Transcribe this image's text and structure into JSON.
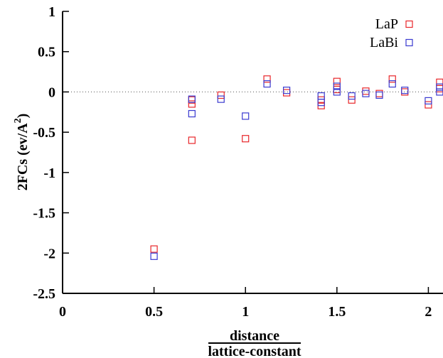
{
  "chart_data": {
    "type": "scatter",
    "title": "",
    "xlabel_numerator": "distance",
    "xlabel_denominator": "lattice-constant",
    "ylabel": "2FCs (ev/A",
    "ylabel_superscript": "2",
    "ylabel_close": ")",
    "xlim": [
      0,
      2.08
    ],
    "ylim": [
      -2.5,
      1
    ],
    "xticks": [
      0,
      0.5,
      1,
      1.5,
      2
    ],
    "xtick_labels": [
      "0",
      "0.5",
      "1",
      "1.5",
      "2"
    ],
    "yticks": [
      1,
      0.5,
      0,
      -0.5,
      -1,
      -1.5,
      -2,
      -2.5
    ],
    "ytick_labels": [
      "1",
      "0.5",
      "0",
      "-0.5",
      "-1",
      "-1.5",
      "-2",
      "-2.5"
    ],
    "zero_line": true,
    "grid": false,
    "legend_position": "top-right",
    "series": [
      {
        "name": "LaP",
        "color": "#e8262a",
        "marker": "open-square",
        "points": [
          {
            "x": 0.5,
            "y": -1.95
          },
          {
            "x": 0.707,
            "y": -0.1
          },
          {
            "x": 0.707,
            "y": -0.15
          },
          {
            "x": 0.707,
            "y": -0.6
          },
          {
            "x": 0.866,
            "y": -0.04
          },
          {
            "x": 1.0,
            "y": -0.58
          },
          {
            "x": 1.118,
            "y": 0.16
          },
          {
            "x": 1.225,
            "y": -0.01
          },
          {
            "x": 1.414,
            "y": -0.1
          },
          {
            "x": 1.414,
            "y": -0.17
          },
          {
            "x": 1.5,
            "y": 0.13
          },
          {
            "x": 1.5,
            "y": 0.03
          },
          {
            "x": 1.581,
            "y": -0.1
          },
          {
            "x": 1.658,
            "y": 0.01
          },
          {
            "x": 1.732,
            "y": -0.02
          },
          {
            "x": 1.803,
            "y": 0.16
          },
          {
            "x": 1.871,
            "y": 0.0
          },
          {
            "x": 2.0,
            "y": -0.16
          },
          {
            "x": 2.062,
            "y": 0.12
          },
          {
            "x": 2.062,
            "y": 0.04
          }
        ]
      },
      {
        "name": "LaBi",
        "color": "#3a3ad0",
        "marker": "open-square",
        "points": [
          {
            "x": 0.5,
            "y": -2.04
          },
          {
            "x": 0.707,
            "y": -0.09
          },
          {
            "x": 0.707,
            "y": -0.27
          },
          {
            "x": 0.866,
            "y": -0.09
          },
          {
            "x": 1.0,
            "y": -0.3
          },
          {
            "x": 1.118,
            "y": 0.1
          },
          {
            "x": 1.225,
            "y": 0.02
          },
          {
            "x": 1.414,
            "y": -0.05
          },
          {
            "x": 1.414,
            "y": -0.13
          },
          {
            "x": 1.5,
            "y": 0.07
          },
          {
            "x": 1.5,
            "y": 0.0
          },
          {
            "x": 1.581,
            "y": -0.05
          },
          {
            "x": 1.658,
            "y": -0.02
          },
          {
            "x": 1.732,
            "y": -0.04
          },
          {
            "x": 1.803,
            "y": 0.1
          },
          {
            "x": 1.871,
            "y": 0.02
          },
          {
            "x": 2.0,
            "y": -0.11
          },
          {
            "x": 2.062,
            "y": 0.06
          },
          {
            "x": 2.062,
            "y": 0.0
          }
        ]
      }
    ]
  }
}
